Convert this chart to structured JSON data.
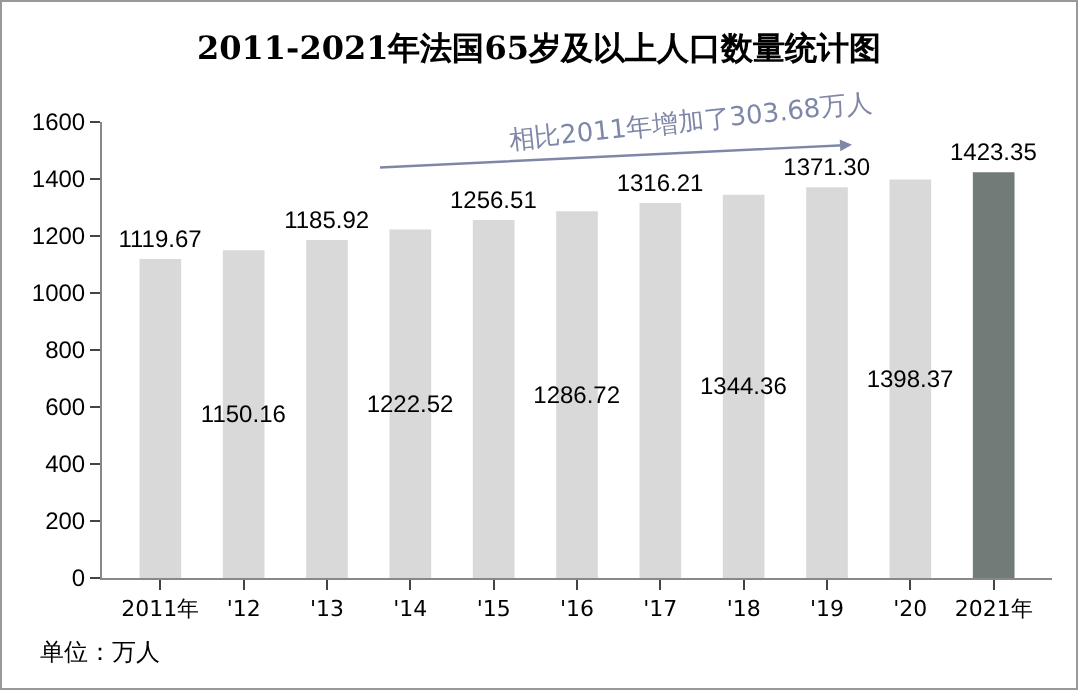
{
  "chart_data": {
    "type": "bar",
    "title": "2011-2021年法国65岁及以上人口数量统计图",
    "categories": [
      "2011年",
      "'12",
      "'13",
      "'14",
      "'15",
      "'16",
      "'17",
      "'18",
      "'19",
      "'20",
      "2021年"
    ],
    "values": [
      1119.67,
      1150.16,
      1185.92,
      1222.52,
      1256.51,
      1286.72,
      1316.21,
      1344.36,
      1371.3,
      1398.37,
      1423.35
    ],
    "colors": [
      "#d9d9d9",
      "#d9d9d9",
      "#d9d9d9",
      "#d9d9d9",
      "#d9d9d9",
      "#d9d9d9",
      "#d9d9d9",
      "#d9d9d9",
      "#d9d9d9",
      "#d9d9d9",
      "#717b78"
    ],
    "value_labels": [
      "1119.67",
      "1150.16",
      "1185.92",
      "1222.52",
      "1256.51",
      "1286.72",
      "1316.21",
      "1344.36",
      "1371.30",
      "1398.37",
      "1423.35"
    ],
    "ylim": [
      0,
      1600
    ],
    "yticks": [
      0,
      200,
      400,
      600,
      800,
      1000,
      1200,
      1400,
      1600
    ],
    "grid": false,
    "annotations": [
      "相比2011年增加了303.68万人",
      "单位：万人"
    ]
  }
}
